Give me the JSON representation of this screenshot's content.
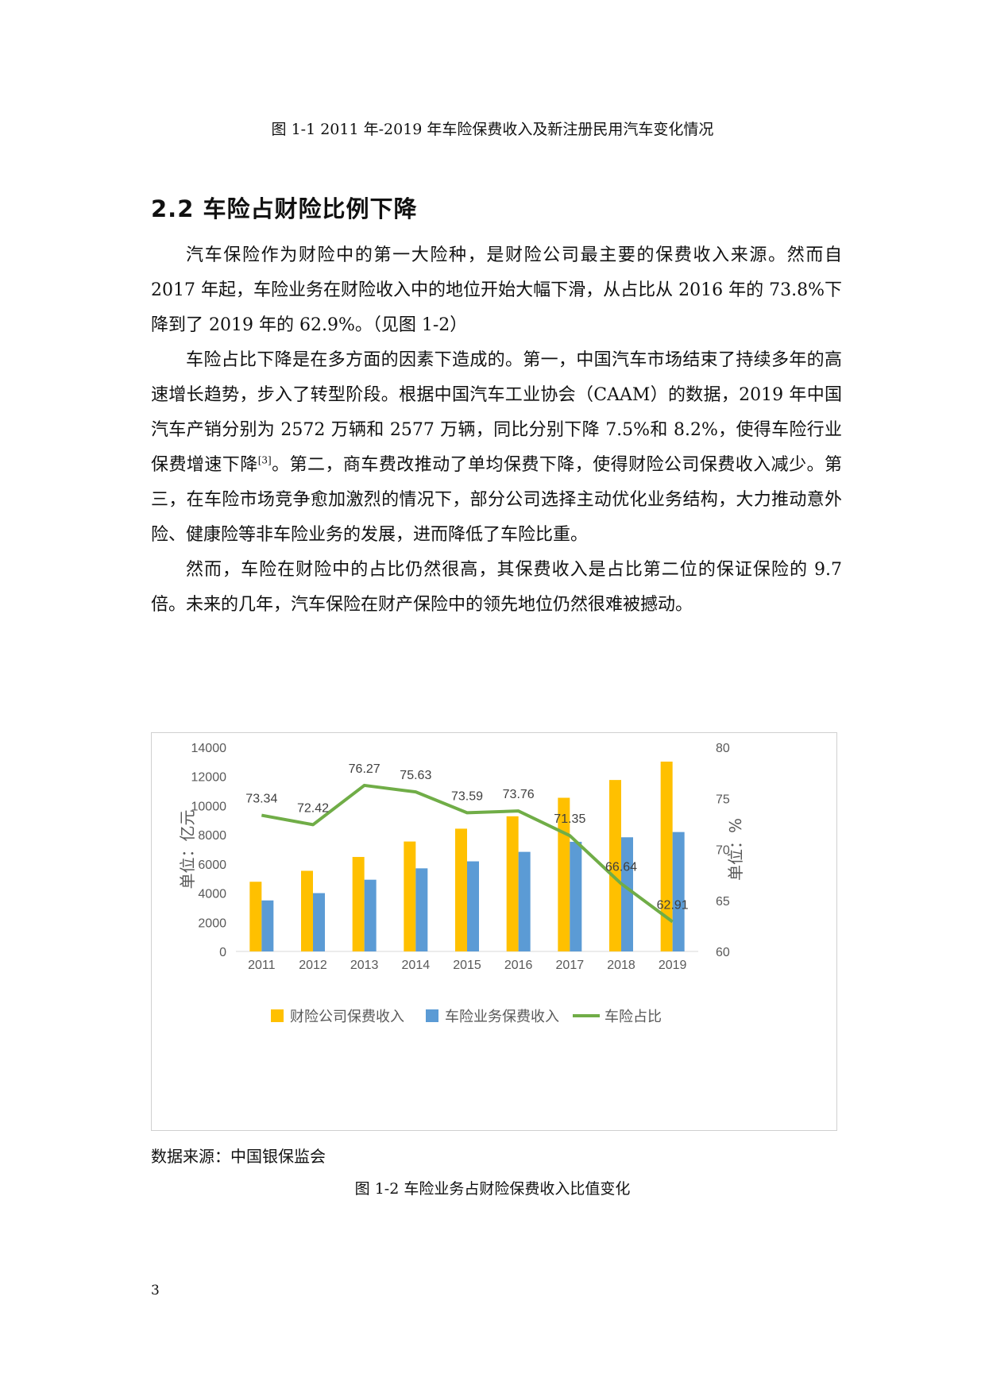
{
  "doc": {
    "top_caption": "图 1-1 2011 年-2019 年车险保费收入及新注册民用汽车变化情况",
    "section_heading": "2.2 车险占财险比例下降",
    "paragraphs": {
      "p1": "汽车保险作为财险中的第一大险种，是财险公司最主要的保费收入来源。然而自 2017 年起，车险业务在财险收入中的地位开始大幅下滑，从占比从 2016 年的 73.8%下降到了 2019 年的 62.9%。（见图 1-2）",
      "p2_before_ref": "车险占比下降是在多方面的因素下造成的。第一，中国汽车市场结束了持续多年的高速增长趋势，步入了转型阶段。根据中国汽车工业协会（CAAM）的数据，2019 年中国汽车产销分别为 2572 万辆和 2577 万辆，同比分别下降 7.5%和 8.2%，使得车险行业保费增速下降",
      "p2_ref": "[3]",
      "p2_after_ref": "。第二，商车费改推动了单均保费下降，使得财险公司保费收入减少。第三，在车险市场竞争愈加激烈的情况下，部分公司选择主动优化业务结构，大力推动意外险、健康险等非车险业务的发展，进而降低了车险比重。",
      "p3": "然而，车险在财险中的占比仍然很高，其保费收入是占比第二位的保证保险的 9.7 倍。未来的几年，汽车保险在财产保险中的领先地位仍然很难被撼动。"
    },
    "source_note": "数据来源：中国银保监会",
    "bottom_caption": "图 1-2 车险业务占财险保费收入比值变化",
    "page_number": "3"
  },
  "chart_data": {
    "type": "bar",
    "categories": [
      "2011",
      "2012",
      "2013",
      "2014",
      "2015",
      "2016",
      "2017",
      "2018",
      "2019"
    ],
    "series": [
      {
        "name": "财险公司保费收入",
        "type": "bar",
        "axis": "left",
        "color": "#FFC000",
        "values": [
          4780,
          5530,
          6480,
          7540,
          8420,
          9270,
          10540,
          11760,
          13020
        ]
      },
      {
        "name": "车险业务保费收入",
        "type": "bar",
        "axis": "left",
        "color": "#5B9BD5",
        "values": [
          3500,
          4000,
          4920,
          5700,
          6180,
          6830,
          7520,
          7830,
          8190
        ]
      },
      {
        "name": "车险占比",
        "type": "line",
        "axis": "right",
        "color": "#70AD47",
        "values": [
          73.34,
          72.42,
          76.27,
          75.63,
          73.59,
          73.76,
          71.35,
          66.64,
          62.91
        ],
        "labels": [
          "73.34",
          "72.42",
          "76.27",
          "75.63",
          "73.59",
          "73.76",
          "71.35",
          "66.64",
          "62.91"
        ]
      }
    ],
    "ylabel": "单位：亿元",
    "y2label": "单位：%",
    "ylim": [
      0,
      14000
    ],
    "y2lim": [
      60,
      80
    ],
    "yticks": [
      "0",
      "2000",
      "4000",
      "6000",
      "8000",
      "10000",
      "12000",
      "14000"
    ],
    "y2ticks": [
      "60",
      "65",
      "70",
      "75",
      "80"
    ],
    "legend_position": "bottom",
    "grid": false
  }
}
